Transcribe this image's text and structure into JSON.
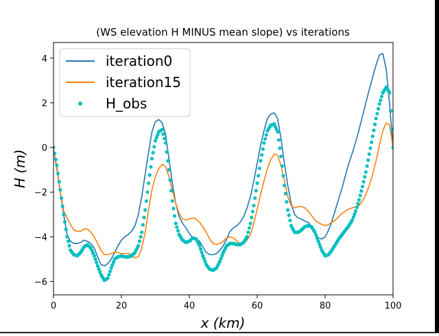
{
  "chart_data": {
    "type": "line",
    "title": "(WS elevation H MINUS mean slope) vs iterations",
    "xlabel": "x (km)",
    "ylabel": "H (m)",
    "xlim": [
      0,
      100
    ],
    "ylim": [
      -6.6,
      4.7
    ],
    "xticks": [
      0,
      20,
      40,
      60,
      80,
      100
    ],
    "yticks": [
      -6,
      -4,
      -2,
      0,
      2,
      4
    ],
    "grid": false,
    "legend": "top-left",
    "series": [
      {
        "name": "iteration0",
        "style": "line",
        "color": "#1f77b4",
        "x": [
          0,
          1,
          2,
          3,
          4,
          5,
          6,
          7,
          8,
          9,
          10,
          11,
          12,
          13,
          14,
          15,
          16,
          17,
          18,
          19,
          20,
          21,
          22,
          23,
          24,
          25,
          26,
          27,
          28,
          29,
          30,
          31,
          32,
          33,
          34,
          35,
          36,
          37,
          38,
          39,
          40,
          41,
          42,
          43,
          44,
          45,
          46,
          47,
          48,
          49,
          50,
          51,
          52,
          53,
          54,
          55,
          56,
          57,
          58,
          59,
          60,
          61,
          62,
          63,
          64,
          65,
          66,
          67,
          68,
          69,
          70,
          71,
          72,
          73,
          74,
          75,
          76,
          77,
          78,
          79,
          80,
          81,
          82,
          83,
          84,
          85,
          86,
          87,
          88,
          89,
          90,
          91,
          92,
          93,
          94,
          95,
          96,
          97,
          98,
          99,
          100
        ],
        "values": [
          -0.1,
          -0.9,
          -2.0,
          -3.0,
          -3.9,
          -4.2,
          -4.3,
          -4.3,
          -4.25,
          -4.15,
          -4.2,
          -4.3,
          -4.5,
          -4.9,
          -5.25,
          -5.3,
          -5.2,
          -5.0,
          -4.7,
          -4.4,
          -4.15,
          -4.0,
          -3.9,
          -3.75,
          -3.5,
          -3.0,
          -2.2,
          -1.2,
          -0.2,
          0.7,
          1.15,
          1.25,
          1.1,
          0.6,
          -0.5,
          -1.6,
          -2.5,
          -3.1,
          -3.4,
          -3.6,
          -3.85,
          -4.05,
          -4.1,
          -4.2,
          -4.45,
          -4.7,
          -4.8,
          -4.8,
          -4.75,
          -4.6,
          -4.4,
          -4.1,
          -3.75,
          -3.6,
          -3.5,
          -3.35,
          -3.1,
          -2.7,
          -2.2,
          -1.5,
          -0.7,
          0.1,
          0.75,
          1.3,
          1.5,
          1.55,
          1.3,
          0.4,
          -0.7,
          -1.7,
          -2.5,
          -3.0,
          -3.15,
          -3.2,
          -3.3,
          -3.35,
          -3.55,
          -3.8,
          -4.05,
          -4.1,
          -4.0,
          -3.7,
          -3.3,
          -2.8,
          -2.3,
          -1.8,
          -1.25,
          -0.7,
          -0.25,
          0.25,
          0.8,
          1.4,
          2.0,
          2.6,
          3.15,
          3.7,
          4.15,
          4.2,
          3.5,
          1.9,
          0.0
        ]
      },
      {
        "name": "iteration15",
        "style": "line",
        "color": "#ff7f0e",
        "x": [
          0,
          1,
          2,
          3,
          4,
          5,
          6,
          7,
          8,
          9,
          10,
          11,
          12,
          13,
          14,
          15,
          16,
          17,
          18,
          19,
          20,
          21,
          22,
          23,
          24,
          25,
          26,
          27,
          28,
          29,
          30,
          31,
          32,
          33,
          34,
          35,
          36,
          37,
          38,
          39,
          40,
          41,
          42,
          43,
          44,
          45,
          46,
          47,
          48,
          49,
          50,
          51,
          52,
          53,
          54,
          55,
          56,
          57,
          58,
          59,
          60,
          61,
          62,
          63,
          64,
          65,
          66,
          67,
          68,
          69,
          70,
          71,
          72,
          73,
          74,
          75,
          76,
          77,
          78,
          79,
          80,
          81,
          82,
          83,
          84,
          85,
          86,
          87,
          88,
          89,
          90,
          91,
          92,
          93,
          94,
          95,
          96,
          97,
          98,
          99,
          100
        ],
        "values": [
          -0.1,
          -1.0,
          -2.0,
          -2.85,
          -3.15,
          -3.45,
          -3.7,
          -3.75,
          -3.75,
          -3.65,
          -3.65,
          -3.8,
          -4.0,
          -4.3,
          -4.6,
          -4.8,
          -4.8,
          -4.75,
          -4.7,
          -4.7,
          -4.75,
          -4.75,
          -4.75,
          -4.8,
          -4.95,
          -4.9,
          -4.5,
          -3.8,
          -2.8,
          -1.9,
          -1.3,
          -0.95,
          -0.75,
          -0.85,
          -1.3,
          -1.9,
          -2.5,
          -2.95,
          -3.2,
          -3.25,
          -3.2,
          -3.15,
          -3.2,
          -3.35,
          -3.55,
          -3.8,
          -4.1,
          -4.3,
          -4.35,
          -4.3,
          -4.2,
          -4.05,
          -4.0,
          -4.05,
          -4.2,
          -4.3,
          -4.3,
          -4.15,
          -3.9,
          -3.4,
          -2.75,
          -2.1,
          -1.5,
          -0.95,
          -0.55,
          -0.3,
          -0.35,
          -0.8,
          -1.5,
          -2.2,
          -2.6,
          -2.7,
          -2.65,
          -2.65,
          -2.7,
          -2.85,
          -3.05,
          -3.25,
          -3.35,
          -3.45,
          -3.5,
          -3.45,
          -3.35,
          -3.25,
          -3.1,
          -2.95,
          -2.85,
          -2.75,
          -2.7,
          -2.65,
          -2.6,
          -2.4,
          -2.1,
          -1.7,
          -1.2,
          -0.6,
          0.1,
          0.75,
          1.1,
          1.0,
          0.0
        ]
      },
      {
        "name": "H_obs",
        "style": "markers",
        "color": "#00bfbf",
        "x": [
          0,
          1,
          2,
          3,
          4,
          5,
          6,
          7,
          8,
          9,
          10,
          11,
          12,
          13,
          14,
          15,
          16,
          17,
          18,
          19,
          20,
          21,
          22,
          23,
          24,
          25,
          26,
          27,
          28,
          29,
          30,
          31,
          32,
          33,
          34,
          35,
          36,
          37,
          38,
          39,
          40,
          41,
          42,
          43,
          44,
          45,
          46,
          47,
          48,
          49,
          50,
          51,
          52,
          53,
          54,
          55,
          56,
          57,
          58,
          59,
          60,
          61,
          62,
          63,
          64,
          65,
          66,
          67,
          68,
          69,
          70,
          71,
          72,
          73,
          74,
          75,
          76,
          77,
          78,
          79,
          80,
          81,
          82,
          83,
          84,
          85,
          86,
          87,
          88,
          89,
          90,
          91,
          92,
          93,
          94,
          95,
          96,
          97,
          98,
          99,
          100
        ],
        "values": [
          0.0,
          -0.8,
          -1.9,
          -3.0,
          -4.0,
          -4.6,
          -4.8,
          -4.85,
          -4.7,
          -4.45,
          -4.35,
          -4.5,
          -4.85,
          -5.3,
          -5.7,
          -5.95,
          -5.85,
          -5.4,
          -5.0,
          -4.9,
          -4.85,
          -4.9,
          -4.9,
          -4.85,
          -4.7,
          -4.4,
          -3.8,
          -2.8,
          -1.6,
          -0.5,
          0.3,
          0.7,
          0.8,
          0.2,
          -1.0,
          -2.4,
          -3.4,
          -3.9,
          -4.15,
          -4.25,
          -4.2,
          -4.05,
          -4.1,
          -4.4,
          -4.85,
          -5.25,
          -5.45,
          -5.5,
          -5.4,
          -5.1,
          -4.7,
          -4.4,
          -4.3,
          -4.3,
          -4.35,
          -4.35,
          -4.25,
          -4.0,
          -3.4,
          -2.6,
          -1.6,
          -0.6,
          0.2,
          0.75,
          1.0,
          1.05,
          0.7,
          -0.4,
          -1.7,
          -2.8,
          -3.5,
          -3.8,
          -3.8,
          -3.7,
          -3.55,
          -3.5,
          -3.55,
          -3.8,
          -4.2,
          -4.6,
          -4.85,
          -4.8,
          -4.6,
          -4.35,
          -4.1,
          -3.9,
          -3.7,
          -3.5,
          -3.25,
          -2.85,
          -2.35,
          -1.75,
          -1.1,
          -0.3,
          0.5,
          1.3,
          1.95,
          2.45,
          2.7,
          2.45,
          0.0
        ]
      }
    ]
  }
}
